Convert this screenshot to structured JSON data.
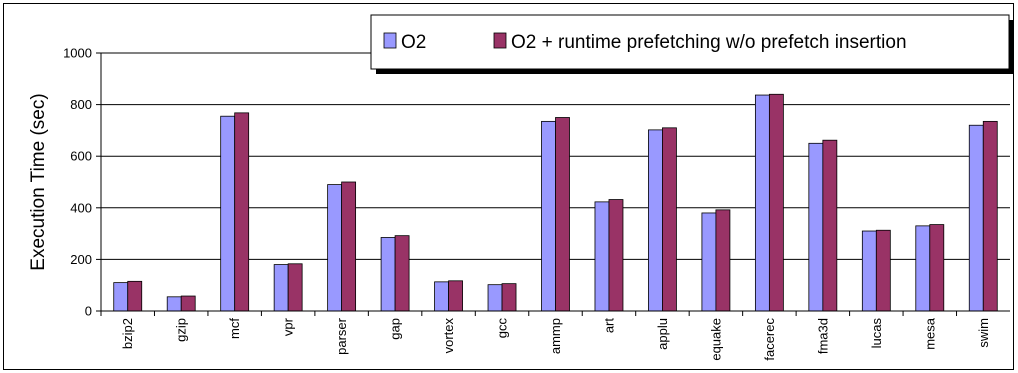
{
  "chart_data": {
    "type": "bar",
    "title": "",
    "xlabel": "",
    "ylabel": "Execution Time (sec)",
    "ylim": [
      0,
      1000
    ],
    "yticks": [
      0,
      200,
      400,
      600,
      800,
      1000
    ],
    "grid": true,
    "legend_position": "top-right",
    "categories": [
      "bzip2",
      "gzip",
      "mcf",
      "vpr",
      "parser",
      "gap",
      "vortex",
      "gcc",
      "ammp",
      "art",
      "applu",
      "equake",
      "facerec",
      "fma3d",
      "lucas",
      "mesa",
      "swim"
    ],
    "series": [
      {
        "name": "O2",
        "color": "#9999FF",
        "values": [
          110,
          55,
          755,
          180,
          490,
          285,
          113,
          102,
          735,
          423,
          702,
          380,
          837,
          650,
          310,
          330,
          720
        ]
      },
      {
        "name": "O2 + runtime prefetching w/o prefetch insertion",
        "color": "#993366",
        "values": [
          115,
          58,
          768,
          183,
          500,
          292,
          117,
          106,
          750,
          432,
          710,
          392,
          840,
          662,
          313,
          335,
          735
        ]
      }
    ]
  }
}
